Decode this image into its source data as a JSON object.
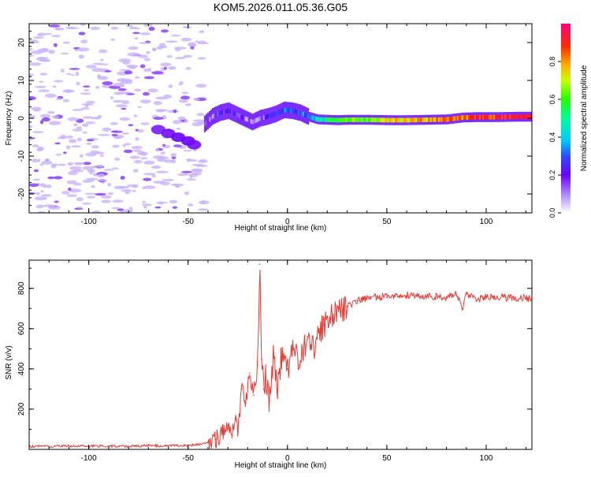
{
  "title": "KOM5.2026.011.05.36.G05",
  "chart_data": [
    {
      "type": "heatmap",
      "title": "KOM5.2026.011.05.36.G05",
      "xlabel": "Height of straight line (km)",
      "ylabel": "Frequency (Hz)",
      "xlim": [
        -130,
        123
      ],
      "ylim": [
        -25,
        25
      ],
      "xticks": [
        -100,
        -50,
        0,
        50,
        100
      ],
      "xtick_labels": [
        "-100",
        "-50",
        "0",
        "50",
        "100"
      ],
      "yticks": [
        -20,
        -10,
        0,
        10,
        20
      ],
      "ytick_labels": [
        "-20",
        "-10",
        "0",
        "10",
        "20"
      ],
      "colorbar": {
        "label": "Normalized spectral amplitude",
        "range": [
          0,
          1
        ],
        "ticks": [
          0.0,
          0.2,
          0.4,
          0.6,
          0.8
        ],
        "tick_labels": [
          "0.0",
          "0.2",
          "0.4",
          "0.6",
          "0.8"
        ]
      },
      "trace": {
        "x": [
          -42,
          -38,
          -34,
          -30,
          -26,
          -22,
          -18,
          -14,
          -10,
          -6,
          -2,
          2,
          6,
          10,
          15,
          20,
          25,
          30,
          40,
          50,
          60,
          70,
          80,
          88,
          95,
          105,
          115,
          123
        ],
        "freq": [
          -1.5,
          0.5,
          1.5,
          2.0,
          1.0,
          0.0,
          -1.0,
          0.0,
          0.5,
          1.2,
          2.2,
          2.0,
          1.5,
          0.5,
          -0.3,
          -0.4,
          -0.5,
          -0.4,
          -0.4,
          -0.5,
          -0.5,
          -0.4,
          -0.3,
          0.2,
          0.3,
          0.3,
          0.4,
          0.4
        ],
        "amplitude": [
          0.12,
          0.15,
          0.2,
          0.22,
          0.2,
          0.12,
          0.1,
          0.15,
          0.2,
          0.25,
          0.3,
          0.28,
          0.25,
          0.35,
          0.4,
          0.5,
          0.55,
          0.6,
          0.62,
          0.75,
          0.72,
          0.8,
          0.85,
          0.8,
          0.9,
          0.88,
          0.92,
          0.9
        ]
      },
      "low_height_blob": {
        "x": [
          -65,
          -60,
          -55,
          -50,
          -47
        ],
        "freq": [
          -3,
          -4,
          -5,
          -6,
          -7
        ],
        "amplitude": [
          0.08,
          0.09,
          0.1,
          0.1,
          0.09
        ]
      }
    },
    {
      "type": "line",
      "xlabel": "Height of straight line (km)",
      "ylabel": "SNR (v/v)",
      "xlim": [
        -130,
        123
      ],
      "ylim": [
        0,
        940
      ],
      "xticks": [
        -100,
        -50,
        0,
        50,
        100
      ],
      "xtick_labels": [
        "-100",
        "-50",
        "0",
        "50",
        "100"
      ],
      "yticks": [
        200,
        400,
        600,
        800
      ],
      "ytick_labels": [
        "200",
        "400",
        "600",
        "800"
      ],
      "color": "#e63b35",
      "x": [
        -130,
        -120,
        -110,
        -100,
        -90,
        -80,
        -70,
        -60,
        -50,
        -45,
        -40,
        -36,
        -33,
        -30,
        -28,
        -26,
        -25,
        -23,
        -21,
        -19,
        -17,
        -15,
        -14,
        -13,
        -12,
        -11,
        -9,
        -7,
        -5,
        -3,
        0,
        3,
        6,
        10,
        14,
        18,
        22,
        26,
        30,
        35,
        40,
        45,
        50,
        55,
        60,
        70,
        80,
        85,
        88,
        90,
        92,
        95,
        100,
        110,
        123
      ],
      "y": [
        15,
        14,
        18,
        16,
        17,
        15,
        19,
        18,
        20,
        25,
        35,
        50,
        80,
        120,
        60,
        150,
        100,
        300,
        230,
        380,
        270,
        420,
        920,
        450,
        300,
        360,
        240,
        480,
        300,
        460,
        400,
        500,
        420,
        560,
        510,
        620,
        650,
        700,
        710,
        740,
        750,
        760,
        755,
        770,
        765,
        760,
        755,
        770,
        700,
        780,
        760,
        740,
        760,
        755,
        750
      ]
    }
  ]
}
